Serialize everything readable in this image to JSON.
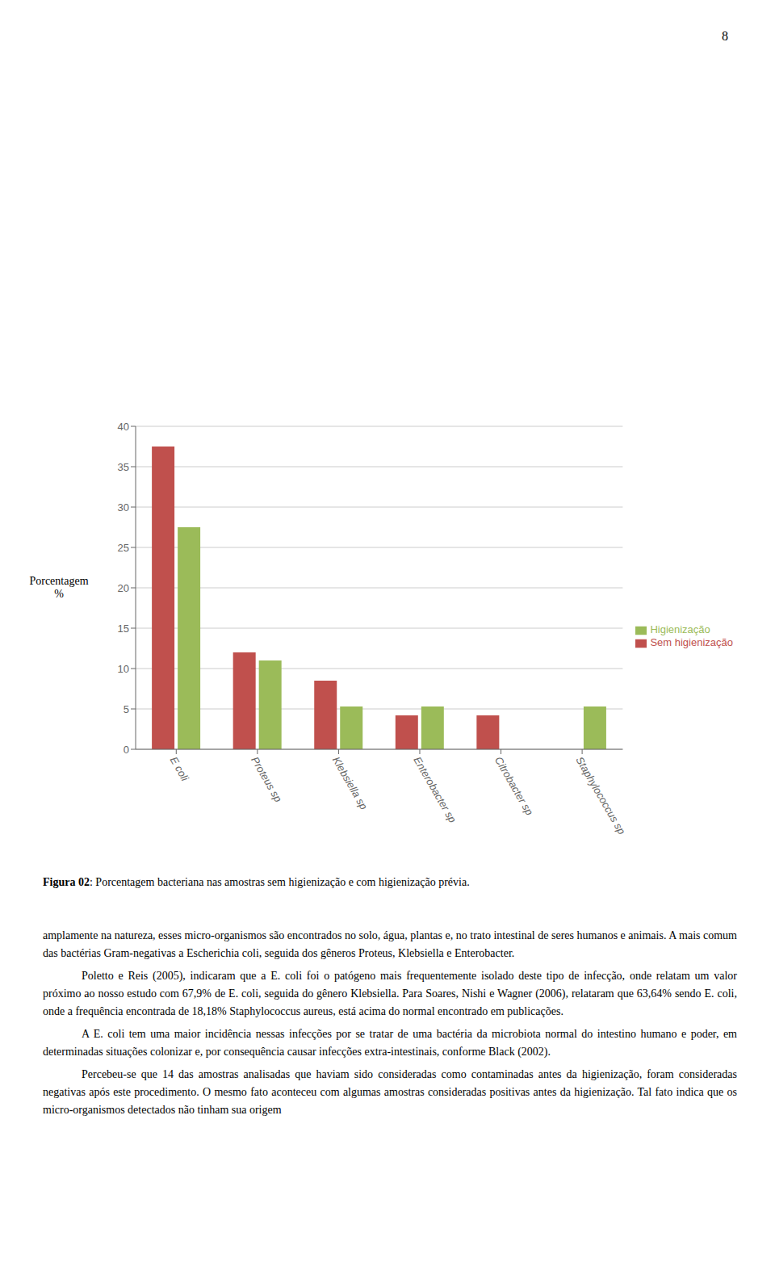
{
  "chart_data": {
    "type": "bar",
    "categories": [
      "E coli",
      "Proteus sp",
      "Klebsiella sp",
      "Enterobacter sp",
      "Citrobacter sp",
      "Staphylococcus sp"
    ],
    "series": [
      {
        "name": "Sem higienização",
        "color": "#C0504D",
        "values": [
          37.5,
          12.0,
          8.5,
          4.2,
          4.2,
          0.0
        ]
      },
      {
        "name": "Higienização",
        "color": "#9BBB59",
        "values": [
          27.5,
          11.0,
          5.3,
          5.3,
          0.0,
          5.3
        ]
      }
    ],
    "ylabel": "Porcentagem\n%",
    "ylim": [
      0,
      40
    ],
    "yticks": [
      0,
      5,
      10,
      15,
      20,
      25,
      30,
      35,
      40
    ],
    "grid": true,
    "legend": "right",
    "annotations": [
      "8",
      "Figura 02",
      ": Porcentagem bacteriana nas amostras sem higienização e com higienização prévia.",
      "amplamente na natureza, esses micro-organismos são encontrados no solo, água, plantas e, no trato intestinal de seres humanos e animais. A mais comum das bactérias Gram-negativas a Escherichia coli, seguida dos gêneros Proteus, Klebsiella e Enterobacter.",
      "Poletto e Reis (2005), indicaram que a E. coli foi o patógeno mais frequentemente isolado deste tipo de infecção, onde relatam um valor próximo ao nosso estudo com 67,9% de E. coli, seguida do gênero Klebsiella. Para Soares, Nishi e Wagner (2006), relataram que 63,64% sendo E. coli, onde a frequência encontrada de 18,18% Staphylococcus aureus, está acima do normal encontrado em publicações.",
      "A E. coli tem uma maior incidência nessas infecções por se tratar de uma bactéria da microbiota normal do intestino humano e poder, em determinadas situações colonizar e, por consequência causar infecções extra-intestinais, conforme Black (2002).",
      "Percebeu-se que 14 das amostras analisadas que haviam sido consideradas como contaminadas antes da higienização, foram consideradas negativas após este procedimento. O mesmo fato aconteceu com algumas amostras consideradas positivas antes da higienização. Tal fato indica que os micro-organismos detectados não tinham sua origem"
    ]
  }
}
